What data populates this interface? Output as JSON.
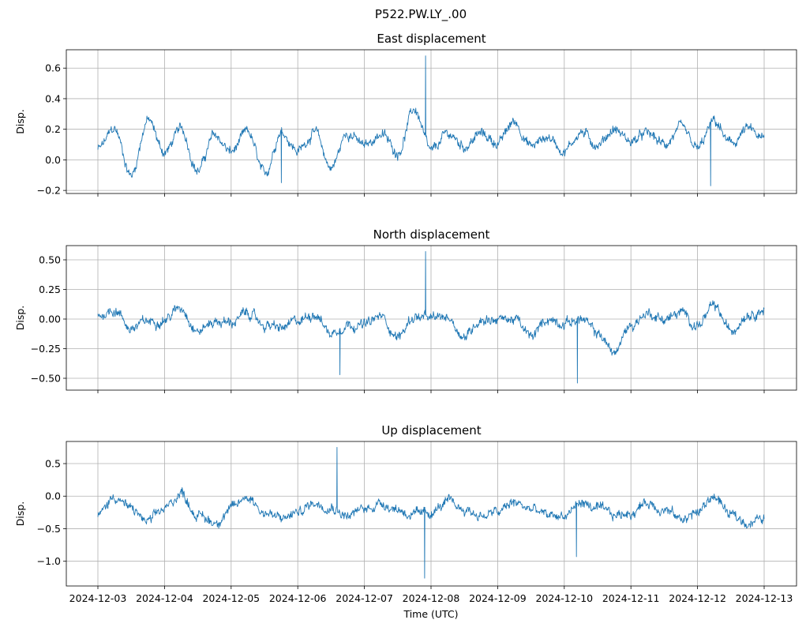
{
  "figure_title": "P522.PW.LY_.00",
  "colors": {
    "series": "#1f77b4",
    "grid": "#b0b0b0"
  },
  "chart_data": [
    {
      "type": "line",
      "title": "East displacement",
      "xlabel": "",
      "ylabel": "Disp.",
      "xlim": [
        "2024-12-03",
        "2024-12-13"
      ],
      "ylim": [
        -0.22,
        0.72
      ],
      "yticks": [
        -0.2,
        0.0,
        0.2,
        0.4,
        0.6
      ],
      "ytick_labels": [
        "−0.2",
        "0.0",
        "0.2",
        "0.4",
        "0.6"
      ],
      "grid": true,
      "series": [
        {
          "x": [
            "2024-12-03T00:00",
            "2024-12-03T06:00",
            "2024-12-03T12:00",
            "2024-12-03T18:00",
            "2024-12-04T00:00",
            "2024-12-04T06:00",
            "2024-12-04T12:00",
            "2024-12-04T18:00",
            "2024-12-05T00:00",
            "2024-12-05T06:00",
            "2024-12-05T12:00",
            "2024-12-05T18:00",
            "2024-12-06T00:00",
            "2024-12-06T06:00",
            "2024-12-06T12:00",
            "2024-12-06T18:00",
            "2024-12-07T00:00",
            "2024-12-07T06:00",
            "2024-12-07T12:00",
            "2024-12-07T18:00",
            "2024-12-08T00:00",
            "2024-12-08T06:00",
            "2024-12-08T12:00",
            "2024-12-08T18:00",
            "2024-12-09T00:00",
            "2024-12-09T06:00",
            "2024-12-09T12:00",
            "2024-12-09T18:00",
            "2024-12-10T00:00",
            "2024-12-10T06:00",
            "2024-12-10T12:00",
            "2024-12-10T18:00",
            "2024-12-11T00:00",
            "2024-12-11T06:00",
            "2024-12-11T12:00",
            "2024-12-11T18:00",
            "2024-12-12T00:00",
            "2024-12-12T06:00",
            "2024-12-12T12:00",
            "2024-12-12T18:00",
            "2024-12-13T00:00"
          ],
          "y": [
            0.07,
            0.2,
            -0.1,
            0.26,
            0.05,
            0.2,
            -0.07,
            0.16,
            0.05,
            0.18,
            -0.1,
            0.19,
            0.06,
            0.18,
            -0.05,
            0.18,
            0.09,
            0.17,
            0.05,
            0.33,
            0.05,
            0.17,
            0.09,
            0.17,
            0.11,
            0.25,
            0.09,
            0.15,
            0.06,
            0.18,
            0.1,
            0.2,
            0.12,
            0.17,
            0.1,
            0.2,
            0.07,
            0.25,
            0.1,
            0.2,
            0.13
          ]
        }
      ],
      "annotations": [
        {
          "x": "2024-12-07T22:00",
          "y": 0.68
        },
        {
          "x": "2024-12-12T05:00",
          "y": -0.17
        },
        {
          "x": "2024-12-05T18:00",
          "y": -0.15
        }
      ]
    },
    {
      "type": "line",
      "title": "North displacement",
      "xlabel": "",
      "ylabel": "Disp.",
      "xlim": [
        "2024-12-03",
        "2024-12-13"
      ],
      "ylim": [
        -0.6,
        0.62
      ],
      "yticks": [
        -0.5,
        -0.25,
        0.0,
        0.25,
        0.5
      ],
      "ytick_labels": [
        "−0.50",
        "−0.25",
        "0.00",
        "0.25",
        "0.50"
      ],
      "grid": true,
      "series": [
        {
          "x": [
            "2024-12-03T00:00",
            "2024-12-03T06:00",
            "2024-12-03T12:00",
            "2024-12-03T18:00",
            "2024-12-04T00:00",
            "2024-12-04T06:00",
            "2024-12-04T12:00",
            "2024-12-04T18:00",
            "2024-12-05T00:00",
            "2024-12-05T06:00",
            "2024-12-05T12:00",
            "2024-12-05T18:00",
            "2024-12-06T00:00",
            "2024-12-06T06:00",
            "2024-12-06T12:00",
            "2024-12-06T18:00",
            "2024-12-07T00:00",
            "2024-12-07T06:00",
            "2024-12-07T12:00",
            "2024-12-07T18:00",
            "2024-12-08T00:00",
            "2024-12-08T06:00",
            "2024-12-08T12:00",
            "2024-12-08T18:00",
            "2024-12-09T00:00",
            "2024-12-09T06:00",
            "2024-12-09T12:00",
            "2024-12-09T18:00",
            "2024-12-10T00:00",
            "2024-12-10T06:00",
            "2024-12-10T12:00",
            "2024-12-10T18:00",
            "2024-12-11T00:00",
            "2024-12-11T06:00",
            "2024-12-11T12:00",
            "2024-12-11T18:00",
            "2024-12-12T00:00",
            "2024-12-12T06:00",
            "2024-12-12T12:00",
            "2024-12-12T18:00",
            "2024-12-13T00:00"
          ],
          "y": [
            0.03,
            0.08,
            -0.08,
            -0.02,
            0.0,
            0.1,
            -0.1,
            -0.02,
            -0.03,
            0.05,
            -0.05,
            -0.08,
            -0.02,
            0.05,
            -0.12,
            -0.04,
            -0.05,
            0.02,
            -0.15,
            0.02,
            0.0,
            0.02,
            -0.15,
            0.0,
            0.0,
            0.0,
            -0.15,
            0.0,
            -0.03,
            0.0,
            -0.12,
            -0.28,
            -0.05,
            0.05,
            0.0,
            0.05,
            -0.05,
            0.1,
            -0.1,
            0.05,
            0.08
          ]
        }
      ],
      "annotations": [
        {
          "x": "2024-12-07T22:00",
          "y": 0.57
        },
        {
          "x": "2024-12-10T05:00",
          "y": -0.54
        },
        {
          "x": "2024-12-06T15:00",
          "y": -0.47
        }
      ]
    },
    {
      "type": "line",
      "title": "Up displacement",
      "xlabel": "Time (UTC)",
      "ylabel": "Disp.",
      "xlim": [
        "2024-12-03",
        "2024-12-13"
      ],
      "ylim": [
        -1.38,
        0.84
      ],
      "yticks": [
        -1.0,
        -0.5,
        0.0,
        0.5
      ],
      "ytick_labels": [
        "−1.0",
        "−0.5",
        "0.0",
        "0.5"
      ],
      "xtick_labels": [
        "2024-12-03",
        "2024-12-04",
        "2024-12-05",
        "2024-12-06",
        "2024-12-07",
        "2024-12-08",
        "2024-12-09",
        "2024-12-10",
        "2024-12-11",
        "2024-12-12",
        "2024-12-13"
      ],
      "grid": true,
      "series": [
        {
          "x": [
            "2024-12-03T00:00",
            "2024-12-03T06:00",
            "2024-12-03T12:00",
            "2024-12-03T18:00",
            "2024-12-04T00:00",
            "2024-12-04T06:00",
            "2024-12-04T12:00",
            "2024-12-04T18:00",
            "2024-12-05T00:00",
            "2024-12-05T06:00",
            "2024-12-05T12:00",
            "2024-12-05T18:00",
            "2024-12-06T00:00",
            "2024-12-06T06:00",
            "2024-12-06T12:00",
            "2024-12-06T18:00",
            "2024-12-07T00:00",
            "2024-12-07T06:00",
            "2024-12-07T12:00",
            "2024-12-07T18:00",
            "2024-12-08T00:00",
            "2024-12-08T06:00",
            "2024-12-08T12:00",
            "2024-12-08T18:00",
            "2024-12-09T00:00",
            "2024-12-09T06:00",
            "2024-12-09T12:00",
            "2024-12-09T18:00",
            "2024-12-10T00:00",
            "2024-12-10T06:00",
            "2024-12-10T12:00",
            "2024-12-10T18:00",
            "2024-12-11T00:00",
            "2024-12-11T06:00",
            "2024-12-11T12:00",
            "2024-12-11T18:00",
            "2024-12-12T00:00",
            "2024-12-12T06:00",
            "2024-12-12T12:00",
            "2024-12-12T18:00",
            "2024-12-13T00:00"
          ],
          "y": [
            -0.3,
            0.0,
            -0.2,
            -0.4,
            -0.2,
            0.05,
            -0.3,
            -0.4,
            -0.2,
            0.0,
            -0.25,
            -0.35,
            -0.25,
            -0.1,
            -0.15,
            -0.3,
            -0.2,
            -0.1,
            -0.2,
            -0.3,
            -0.25,
            -0.1,
            -0.2,
            -0.3,
            -0.25,
            -0.1,
            -0.2,
            -0.3,
            -0.3,
            -0.1,
            -0.2,
            -0.3,
            -0.25,
            -0.1,
            -0.2,
            -0.35,
            -0.25,
            0.0,
            -0.3,
            -0.4,
            -0.35
          ]
        }
      ],
      "annotations": [
        {
          "x": "2024-12-06T14:00",
          "y": 0.75
        },
        {
          "x": "2024-12-07T22:00",
          "y": -1.26
        },
        {
          "x": "2024-12-10T05:00",
          "y": -0.93
        }
      ]
    }
  ]
}
